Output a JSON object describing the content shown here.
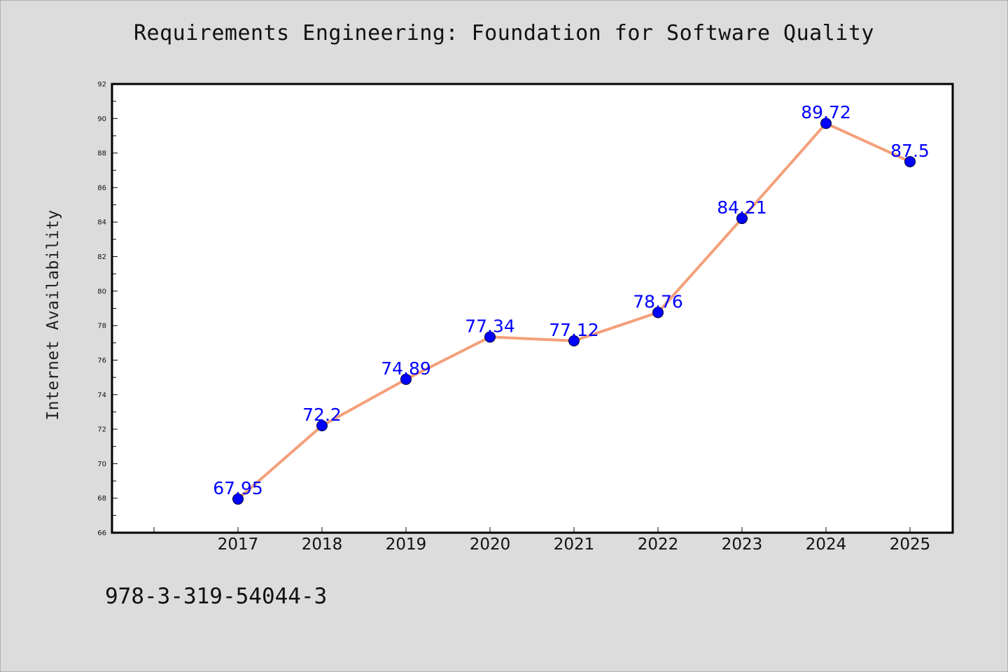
{
  "chart_data": {
    "type": "line",
    "title": "Requirements Engineering: Foundation for Software Quality",
    "xlabel": "",
    "ylabel": "Internet Availability",
    "categories": [
      "2017",
      "2018",
      "2019",
      "2020",
      "2021",
      "2022",
      "2023",
      "2024",
      "2025"
    ],
    "series": [
      {
        "values": [
          67.95,
          72.2,
          74.89,
          77.34,
          77.12,
          78.76,
          84.21,
          89.72,
          87.5
        ],
        "labels": [
          "67.95",
          "72.2",
          "74.89",
          "77.34",
          "77.12",
          "78.76",
          "84.21",
          "89.72",
          "87.5"
        ],
        "color": "#f4a07a",
        "marker_color": "#0000ff"
      }
    ],
    "ylim": [
      66,
      92
    ],
    "yticks": [
      "66",
      "68",
      "70",
      "72",
      "74",
      "76",
      "78",
      "80",
      "82",
      "84",
      "86",
      "88",
      "90",
      "92"
    ],
    "grid": false,
    "legend": "none",
    "background": "#dcdcdc",
    "plot_background": "#ffffff"
  },
  "footer": {
    "code": "978-3-319-54044-3"
  }
}
